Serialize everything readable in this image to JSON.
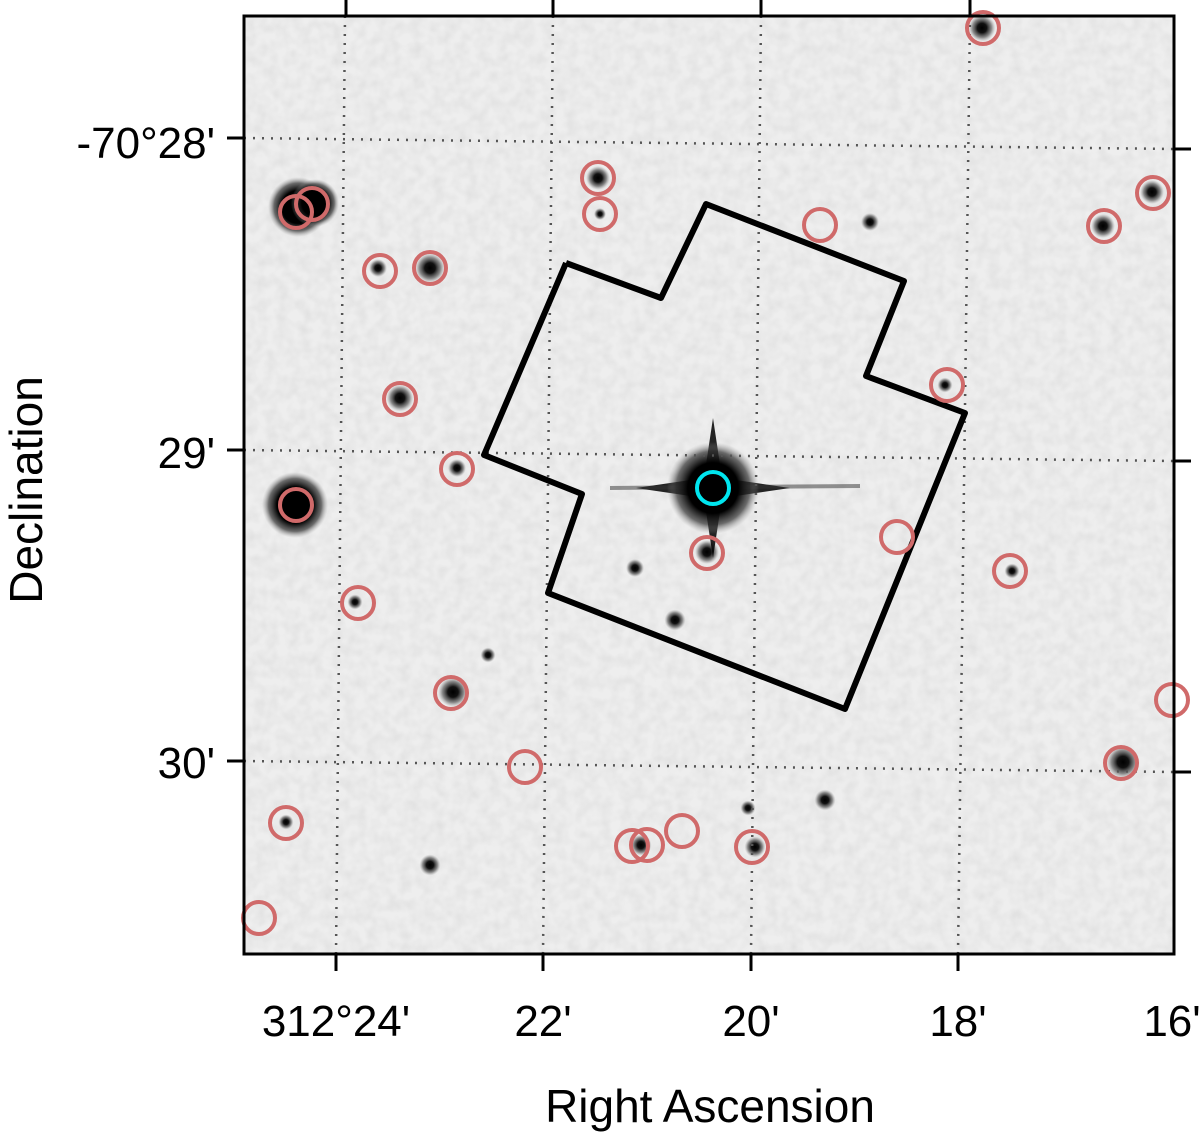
{
  "figure": {
    "type": "sky-image-cutout",
    "colormap": "grayscale-inverted",
    "grid": "dotted",
    "x_axis": {
      "label": "Right Ascension",
      "ticks": [
        "312°24'",
        "22'",
        "20'",
        "18'",
        "16'"
      ]
    },
    "y_axis": {
      "label": "Declination",
      "ticks": [
        "-70°28'",
        "29'",
        "30'"
      ]
    },
    "colors": {
      "catalog_markers": "#d06a6a",
      "target_marker": "#00e5ee",
      "footprint_outline": "#000000",
      "grid": "#555555"
    },
    "markers": {
      "catalog_sources": "red open circles",
      "target": "cyan open circle",
      "footprint": "black polygon outline"
    }
  }
}
